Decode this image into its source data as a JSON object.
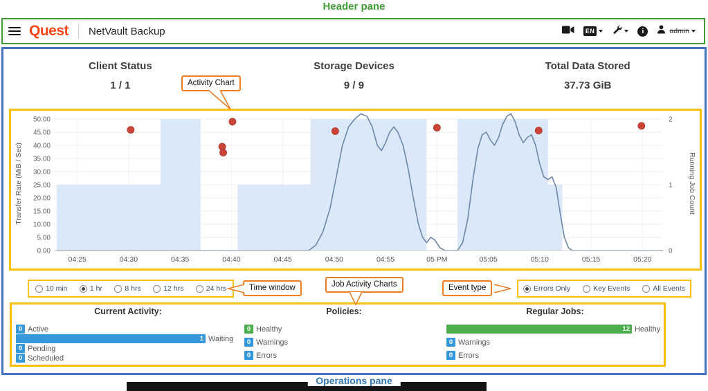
{
  "annotations": {
    "header_pane": "Header pane",
    "operations_pane": "Operations pane",
    "activity_chart_callout": "Activity Chart",
    "time_window_callout": "Time window",
    "job_activity_callout": "Job Activity Charts",
    "event_type_callout": "Event type"
  },
  "header": {
    "brand": "Quest",
    "app_title": "NetVault Backup",
    "language_badge": "EN",
    "user_name": "admin"
  },
  "summary_cards": [
    {
      "title": "Client Status",
      "value": "1 / 1"
    },
    {
      "title": "Storage Devices",
      "value": "9 / 9"
    },
    {
      "title": "Total Data Stored",
      "value": "37.73 GiB"
    }
  ],
  "time_window": {
    "selected": "1 hr",
    "options": [
      "10 min",
      "1 hr",
      "8 hrs",
      "12 hrs",
      "24 hrs"
    ]
  },
  "event_type": {
    "selected": "Errors Only",
    "options": [
      "Errors Only",
      "Key Events",
      "All Events"
    ]
  },
  "chart_data": {
    "type": "line",
    "title": "Activity Chart",
    "x_axis": {
      "unit": "minutes after 04:00 PM",
      "domain": [
        23,
        82
      ],
      "ticks": [
        {
          "m": 25,
          "label": "04:25"
        },
        {
          "m": 30,
          "label": "04:30"
        },
        {
          "m": 35,
          "label": "04:35"
        },
        {
          "m": 40,
          "label": "04:40"
        },
        {
          "m": 45,
          "label": "04:45"
        },
        {
          "m": 50,
          "label": "04:50"
        },
        {
          "m": 55,
          "label": "04:55"
        },
        {
          "m": 60,
          "label": "05 PM"
        },
        {
          "m": 65,
          "label": "05:05"
        },
        {
          "m": 70,
          "label": "05:10"
        },
        {
          "m": 75,
          "label": "05:15"
        },
        {
          "m": 80,
          "label": "05:20"
        }
      ]
    },
    "y_left": {
      "label": "Transfer Rate (MiB / Sec)",
      "range": [
        0,
        50
      ],
      "tick_labels": [
        "0.00",
        "5.00",
        "10.00",
        "15.00",
        "20.00",
        "25.00",
        "30.00",
        "35.00",
        "40.00",
        "45.00",
        "50.00"
      ]
    },
    "y_right": {
      "label": "Running Job Count",
      "range": [
        0,
        2
      ],
      "ticks": [
        0,
        1,
        2
      ]
    },
    "grid": true,
    "legend": false,
    "series": [
      {
        "name": "Running Job Count",
        "type": "area-step",
        "axis": "right",
        "color": "#dbe8f8",
        "segments": [
          [
            23,
            33.1,
            1
          ],
          [
            33.1,
            37,
            2
          ],
          [
            37,
            40.6,
            0
          ],
          [
            40.6,
            47.7,
            1
          ],
          [
            47.7,
            59,
            2
          ],
          [
            59,
            62,
            0
          ],
          [
            62,
            70.8,
            2
          ],
          [
            70.8,
            72.2,
            1
          ],
          [
            72.2,
            82,
            0
          ]
        ]
      },
      {
        "name": "Transfer Rate",
        "type": "line",
        "axis": "left",
        "color": "#6d87a8",
        "points": [
          [
            23,
            0
          ],
          [
            47.5,
            0
          ],
          [
            48.2,
            2
          ],
          [
            48.9,
            7
          ],
          [
            49.6,
            16
          ],
          [
            50.2,
            28
          ],
          [
            50.8,
            40
          ],
          [
            51.4,
            47
          ],
          [
            52,
            50
          ],
          [
            52.6,
            52
          ],
          [
            53.2,
            51
          ],
          [
            53.7,
            47
          ],
          [
            54.2,
            40
          ],
          [
            54.6,
            38
          ],
          [
            55,
            41
          ],
          [
            55.4,
            45
          ],
          [
            55.8,
            47
          ],
          [
            56.2,
            45
          ],
          [
            56.7,
            40
          ],
          [
            57.2,
            31
          ],
          [
            57.7,
            20
          ],
          [
            58.2,
            10
          ],
          [
            58.6,
            5
          ],
          [
            59,
            3
          ],
          [
            59.4,
            5
          ],
          [
            59.8,
            4
          ],
          [
            60.3,
            1
          ],
          [
            60.8,
            0
          ],
          [
            62,
            0
          ],
          [
            62.5,
            3
          ],
          [
            63,
            12
          ],
          [
            63.5,
            27
          ],
          [
            64,
            39
          ],
          [
            64.4,
            44
          ],
          [
            64.8,
            45
          ],
          [
            65.2,
            42
          ],
          [
            65.6,
            40
          ],
          [
            66,
            43
          ],
          [
            66.4,
            48
          ],
          [
            66.8,
            51
          ],
          [
            67.2,
            52
          ],
          [
            67.6,
            49
          ],
          [
            68,
            44
          ],
          [
            68.4,
            41
          ],
          [
            68.8,
            43
          ],
          [
            69.2,
            44
          ],
          [
            69.6,
            40
          ],
          [
            70,
            33
          ],
          [
            70.4,
            28
          ],
          [
            70.8,
            27
          ],
          [
            71.2,
            28
          ],
          [
            71.6,
            24
          ],
          [
            72,
            14
          ],
          [
            72.4,
            5
          ],
          [
            72.8,
            1
          ],
          [
            73.2,
            0
          ],
          [
            82,
            0
          ]
        ]
      },
      {
        "name": "Error Events",
        "type": "scatter",
        "axis": "left",
        "color": "#cc4437",
        "points": [
          [
            30.2,
            45.9
          ],
          [
            39.1,
            39.5
          ],
          [
            39.2,
            37.2
          ],
          [
            40.1,
            49
          ],
          [
            50.1,
            45.4
          ],
          [
            60,
            46.7
          ],
          [
            69.9,
            45.6
          ],
          [
            79.9,
            47.4
          ]
        ]
      }
    ]
  },
  "operations": {
    "groups": [
      {
        "title": "Current Activity:",
        "max": 1,
        "rows": [
          {
            "label": "Active",
            "value": 0,
            "color": "blue"
          },
          {
            "label": "Waiting",
            "value": 1,
            "color": "blue"
          },
          {
            "label": "Pending",
            "value": 0,
            "color": "blue"
          },
          {
            "label": "Scheduled",
            "value": 0,
            "color": "blue"
          }
        ]
      },
      {
        "title": "Policies:",
        "max": 1,
        "rows": [
          {
            "label": "Healthy",
            "value": 0,
            "color": "green"
          },
          {
            "label": "Warnings",
            "value": 0,
            "color": "blue"
          },
          {
            "label": "Errors",
            "value": 0,
            "color": "blue"
          }
        ]
      },
      {
        "title": "Regular Jobs:",
        "max": 12,
        "rows": [
          {
            "label": "Healthy",
            "value": 12,
            "color": "green"
          },
          {
            "label": "Warnings",
            "value": 0,
            "color": "blue"
          },
          {
            "label": "Errors",
            "value": 0,
            "color": "blue"
          }
        ]
      }
    ]
  },
  "colors": {
    "blue": "#3498db",
    "green": "#4cae4c",
    "annotation_green": "#3f9c35",
    "annotation_blue_border": "#4472c4",
    "annotation_yellow": "#ffc000",
    "annotation_orange": "#ee7d23",
    "operations_label_blue": "#2e74b5",
    "error_dot": "#cc4437",
    "transfer_line": "#6d87a8",
    "job_count_area": "#dbe8f8"
  }
}
